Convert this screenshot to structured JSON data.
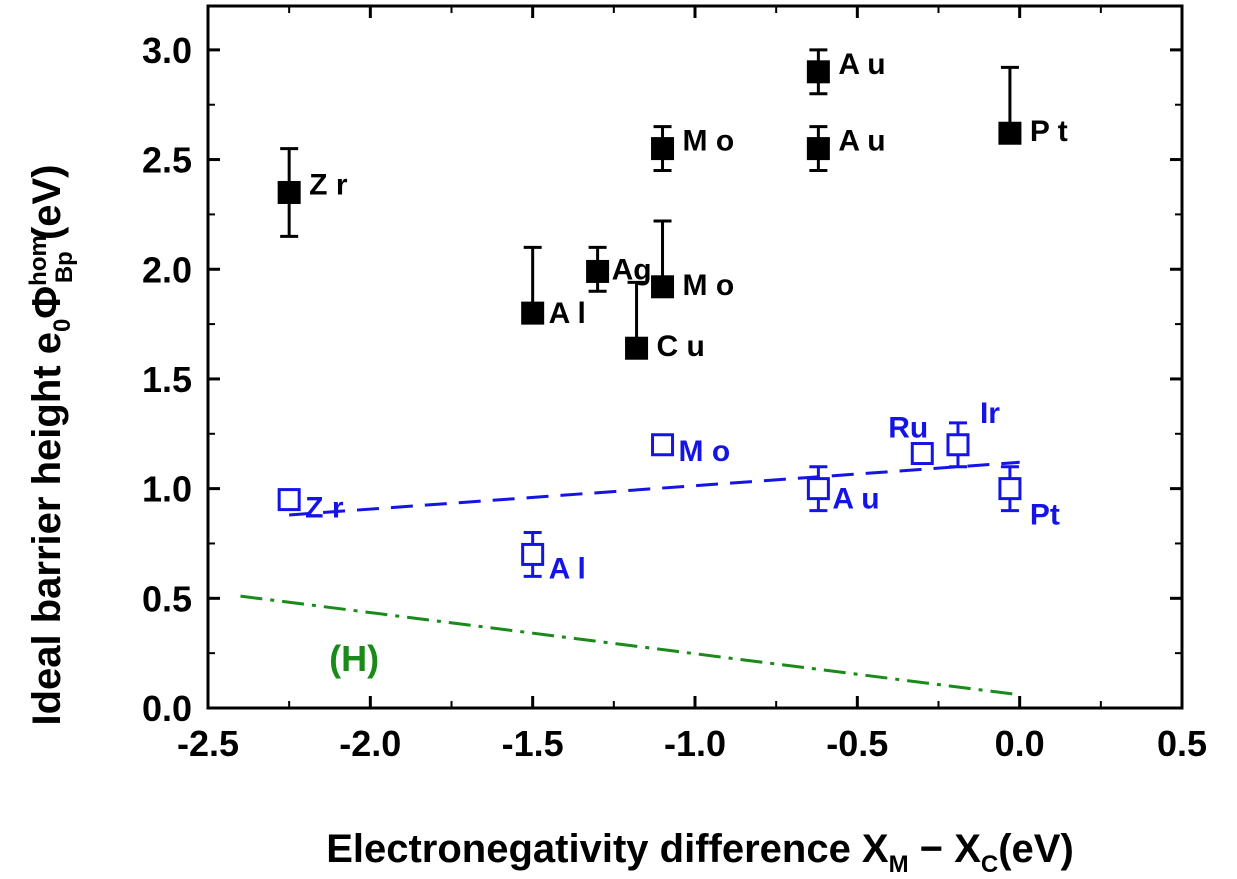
{
  "chart_data": {
    "type": "scatter",
    "xlabel": {
      "main": "Electronegativity difference X",
      "sub1": "M",
      "mid": " − X",
      "sub2": "C",
      "end": "(eV)"
    },
    "ylabel": {
      "main": "Ideal barrier height e",
      "sub0": "0",
      "phi": "Φ",
      "sup": "hom",
      "subBp": "Bp",
      "end": " (eV)"
    },
    "xlim": [
      -2.5,
      0.5
    ],
    "ylim": [
      0.0,
      3.2
    ],
    "xticks": [
      "-2.5",
      "-2.0",
      "-1.5",
      "-1.0",
      "-0.5",
      "0.0",
      "0.5"
    ],
    "yticks": [
      "0.0",
      "0.5",
      "1.0",
      "1.5",
      "2.0",
      "2.5",
      "3.0"
    ],
    "grid": false,
    "series": [
      {
        "marker": "filled-square",
        "color": "#000000",
        "points": [
          {
            "label": "Z r",
            "x": -2.25,
            "y": 2.35,
            "err_low": 0.2,
            "err_high": 0.2
          },
          {
            "label": "A l",
            "x": -1.5,
            "y": 1.8,
            "err_low": 0.0,
            "err_high": 0.3
          },
          {
            "label": "Ag",
            "x": -1.3,
            "y": 1.99,
            "err_low": 0.09,
            "err_high": 0.11
          },
          {
            "label": "C u",
            "x": -1.18,
            "y": 1.64,
            "err_low": 0.0,
            "err_high": 0.3
          },
          {
            "label": "M o",
            "x": -1.1,
            "y": 2.55,
            "err_low": 0.1,
            "err_high": 0.1
          },
          {
            "label": "M o",
            "x": -1.1,
            "y": 1.92,
            "err_low": 0.0,
            "err_high": 0.3
          },
          {
            "label": "A u",
            "x": -0.62,
            "y": 2.9,
            "err_low": 0.1,
            "err_high": 0.1
          },
          {
            "label": "A u",
            "x": -0.62,
            "y": 2.55,
            "err_low": 0.1,
            "err_high": 0.1
          },
          {
            "label": "P t",
            "x": -0.03,
            "y": 2.62,
            "err_low": 0.0,
            "err_high": 0.3
          }
        ]
      },
      {
        "marker": "open-square",
        "color": "#1414e6",
        "points": [
          {
            "label": "Z r",
            "x": -2.25,
            "y": 0.95,
            "err_low": 0.0,
            "err_high": 0.0
          },
          {
            "label": "A l",
            "x": -1.5,
            "y": 0.7,
            "err_low": 0.1,
            "err_high": 0.1
          },
          {
            "label": "M o",
            "x": -1.1,
            "y": 1.2,
            "err_low": 0.0,
            "err_high": 0.0
          },
          {
            "label": "A u",
            "x": -0.62,
            "y": 1.0,
            "err_low": 0.1,
            "err_high": 0.1
          },
          {
            "label": "Ru",
            "x": -0.3,
            "y": 1.16,
            "err_low": 0.0,
            "err_high": 0.0
          },
          {
            "label": "Ir",
            "x": -0.19,
            "y": 1.2,
            "err_low": 0.1,
            "err_high": 0.1
          },
          {
            "label": "Pt",
            "x": -0.03,
            "y": 1.0,
            "err_low": 0.1,
            "err_high": 0.1
          }
        ]
      }
    ],
    "lines": [
      {
        "style": "dashed",
        "color": "#1414e6",
        "points": [
          [
            -2.25,
            0.88
          ],
          [
            0.0,
            1.12
          ]
        ]
      },
      {
        "style": "dash-dot",
        "color": "#1a8a1a",
        "label": "(H)",
        "points": [
          [
            -2.4,
            0.51
          ],
          [
            0.0,
            0.06
          ]
        ]
      }
    ]
  }
}
